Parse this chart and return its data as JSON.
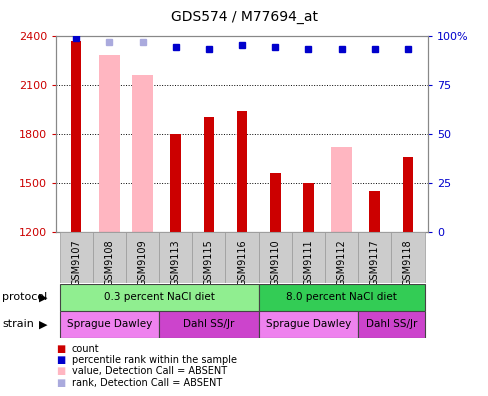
{
  "title": "GDS574 / M77694_at",
  "samples": [
    "GSM9107",
    "GSM9108",
    "GSM9109",
    "GSM9113",
    "GSM9115",
    "GSM9116",
    "GSM9110",
    "GSM9111",
    "GSM9112",
    "GSM9117",
    "GSM9118"
  ],
  "bar_values": [
    2370,
    null,
    null,
    1800,
    1900,
    1940,
    1560,
    1500,
    null,
    1450,
    1660
  ],
  "pink_values": [
    null,
    2280,
    2160,
    null,
    null,
    null,
    null,
    null,
    1720,
    null,
    null
  ],
  "rank_values": [
    99,
    97,
    97,
    94,
    93,
    95,
    94,
    93,
    93,
    93,
    93
  ],
  "rank_absent": [
    false,
    true,
    true,
    false,
    false,
    false,
    false,
    false,
    false,
    false,
    false
  ],
  "ylim_left": [
    1200,
    2400
  ],
  "ylim_right": [
    0,
    100
  ],
  "yticks_left": [
    1200,
    1500,
    1800,
    2100,
    2400
  ],
  "yticks_right": [
    0,
    25,
    50,
    75,
    100
  ],
  "protocol_groups": [
    {
      "label": "0.3 percent NaCl diet",
      "start": 0,
      "end": 5,
      "color": "#90ee90"
    },
    {
      "label": "8.0 percent NaCl diet",
      "start": 6,
      "end": 10,
      "color": "#33cc55"
    }
  ],
  "strain_configs": [
    {
      "label": "Sprague Dawley",
      "start": 0,
      "end": 2,
      "color": "#ee82ee"
    },
    {
      "label": "Dahl SS/Jr",
      "start": 3,
      "end": 5,
      "color": "#cc44cc"
    },
    {
      "label": "Sprague Dawley",
      "start": 6,
      "end": 8,
      "color": "#ee82ee"
    },
    {
      "label": "Dahl SS/Jr",
      "start": 9,
      "end": 10,
      "color": "#cc44cc"
    }
  ],
  "bar_color": "#cc0000",
  "pink_bar_color": "#ffb6c1",
  "rank_color": "#0000cc",
  "rank_absent_color": "#aaaadd",
  "bg_color": "#ffffff",
  "left_label_color": "#cc0000",
  "right_label_color": "#0000cc",
  "xtick_bg": "#cccccc",
  "legend_items": [
    {
      "label": "count",
      "color": "#cc0000"
    },
    {
      "label": "percentile rank within the sample",
      "color": "#0000cc"
    },
    {
      "label": "value, Detection Call = ABSENT",
      "color": "#ffb6c1"
    },
    {
      "label": "rank, Detection Call = ABSENT",
      "color": "#aaaadd"
    }
  ]
}
